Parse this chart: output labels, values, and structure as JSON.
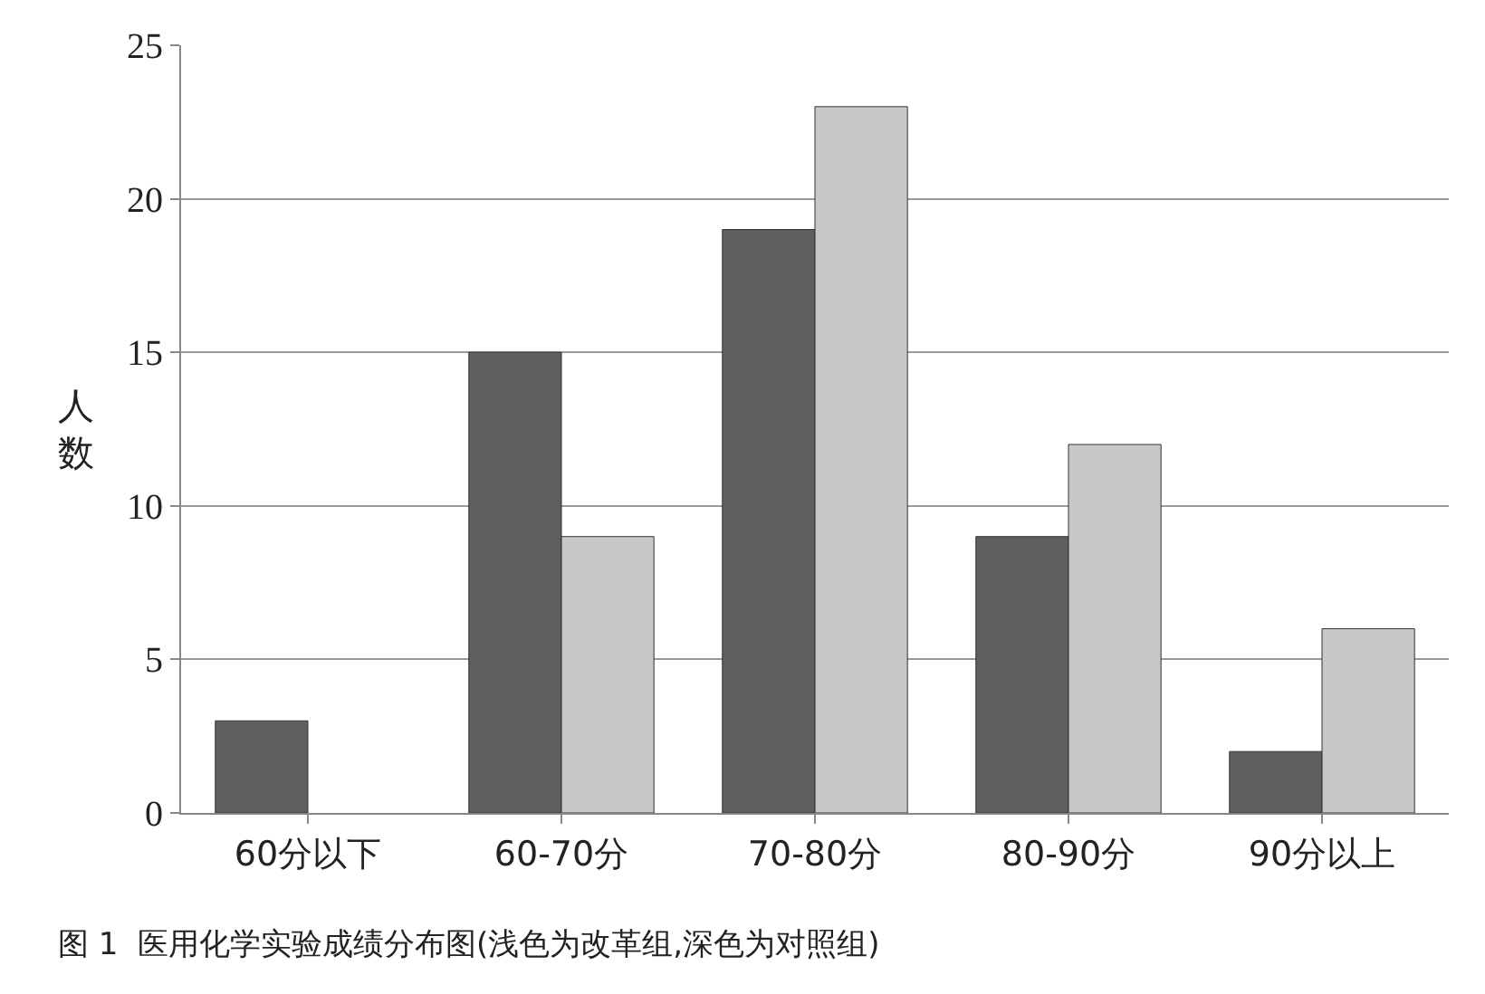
{
  "chart_data": {
    "type": "bar",
    "title": "图 1  医用化学实验成绩分布图(浅色为改革组,深色为对照组)",
    "ylabel": "人数",
    "categories": [
      "60分以下",
      "60-70分",
      "70-80分",
      "80-90分",
      "90分以上"
    ],
    "series": [
      {
        "color": "#5f5f5f",
        "values": [
          3,
          15,
          19,
          9,
          2
        ]
      },
      {
        "color": "#c8c8c8",
        "values": [
          null,
          9,
          23,
          12,
          6
        ]
      }
    ],
    "ylim": [
      0,
      25
    ],
    "yticks": [
      0,
      5,
      10,
      15,
      20,
      25
    ],
    "grid": "y"
  }
}
